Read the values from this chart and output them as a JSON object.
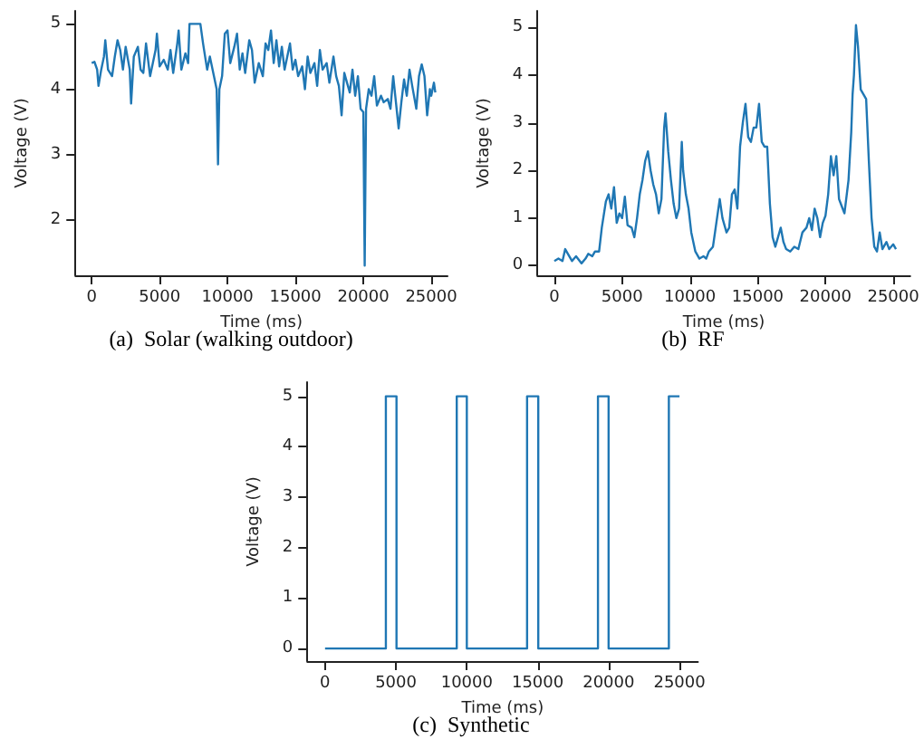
{
  "chart_data": [
    {
      "type": "line",
      "title": "(a)  Solar (walking outdoor)",
      "xlabel": "Time (ms)",
      "ylabel": "Voltage (V)",
      "color": "#1f77b4",
      "x": [
        0,
        200,
        400,
        500,
        700,
        900,
        1000,
        1200,
        1500,
        1700,
        1900,
        2100,
        2300,
        2500,
        2800,
        2900,
        3100,
        3400,
        3600,
        3800,
        4000,
        4300,
        4500,
        4700,
        4800,
        5000,
        5300,
        5600,
        5800,
        6000,
        6300,
        6400,
        6600,
        6900,
        7100,
        7200,
        8000,
        8200,
        8500,
        8700,
        9000,
        9200,
        9300,
        9400,
        9600,
        9800,
        10000,
        10200,
        10500,
        10700,
        10900,
        11100,
        11300,
        11600,
        11800,
        12000,
        12300,
        12600,
        12800,
        13000,
        13200,
        13400,
        13600,
        13800,
        14000,
        14200,
        14400,
        14600,
        14800,
        15000,
        15200,
        15500,
        15700,
        15900,
        16100,
        16400,
        16600,
        16800,
        17000,
        17300,
        17500,
        17800,
        18000,
        18200,
        18400,
        18600,
        18800,
        19000,
        19200,
        19400,
        19600,
        19800,
        20000,
        20100,
        20200,
        20400,
        20600,
        20800,
        21000,
        21300,
        21500,
        21800,
        22000,
        22200,
        22400,
        22600,
        22800,
        23000,
        23200,
        23400,
        23600,
        23900,
        24100,
        24300,
        24500,
        24700,
        24900,
        25000,
        25200,
        25300
      ],
      "values": [
        4.4,
        4.42,
        4.3,
        4.05,
        4.3,
        4.5,
        4.75,
        4.3,
        4.2,
        4.5,
        4.75,
        4.6,
        4.3,
        4.65,
        4.3,
        3.78,
        4.5,
        4.65,
        4.3,
        4.25,
        4.7,
        4.2,
        4.4,
        4.6,
        4.85,
        4.35,
        4.45,
        4.3,
        4.6,
        4.25,
        4.7,
        4.9,
        4.3,
        4.55,
        4.4,
        5.0,
        5.0,
        4.7,
        4.3,
        4.5,
        4.2,
        4.0,
        2.85,
        4.0,
        4.2,
        4.85,
        4.9,
        4.4,
        4.65,
        4.85,
        4.3,
        4.55,
        4.25,
        4.75,
        4.6,
        4.1,
        4.4,
        4.2,
        4.7,
        4.6,
        4.9,
        4.4,
        4.75,
        4.35,
        4.65,
        4.3,
        4.5,
        4.7,
        4.3,
        4.45,
        4.2,
        4.35,
        4.0,
        4.5,
        4.25,
        4.4,
        4.05,
        4.6,
        4.3,
        4.4,
        4.1,
        4.5,
        4.2,
        4.05,
        3.6,
        4.25,
        4.1,
        3.95,
        4.3,
        3.9,
        4.2,
        3.7,
        3.65,
        1.3,
        3.7,
        4.0,
        3.9,
        4.2,
        3.75,
        3.9,
        3.8,
        3.85,
        3.7,
        4.2,
        3.8,
        3.4,
        3.8,
        4.15,
        3.9,
        4.3,
        4.05,
        3.7,
        4.2,
        4.38,
        4.2,
        3.6,
        4.0,
        3.9,
        4.1,
        3.95
      ],
      "xlim": [
        -1200,
        26200
      ],
      "ylim": [
        1.15,
        5.2
      ],
      "xticks": [
        0,
        5000,
        10000,
        15000,
        20000,
        25000
      ],
      "yticks": [
        2,
        3,
        4,
        5
      ]
    },
    {
      "type": "line",
      "title": "(b)  RF",
      "xlabel": "Time (ms)",
      "ylabel": "Voltage (V)",
      "color": "#1f77b4",
      "x": [
        0,
        300,
        600,
        800,
        1000,
        1300,
        1600,
        2000,
        2300,
        2500,
        2800,
        3000,
        3300,
        3500,
        3800,
        4000,
        4200,
        4400,
        4600,
        4800,
        5000,
        5200,
        5400,
        5700,
        5900,
        6100,
        6300,
        6500,
        6700,
        6900,
        7100,
        7300,
        7500,
        7700,
        7900,
        8100,
        8200,
        8400,
        8600,
        8800,
        9000,
        9200,
        9400,
        9500,
        9700,
        9900,
        10100,
        10400,
        10700,
        11000,
        11200,
        11400,
        11700,
        11900,
        12200,
        12400,
        12700,
        12900,
        13100,
        13300,
        13500,
        13700,
        13900,
        14100,
        14300,
        14500,
        14700,
        14900,
        15100,
        15300,
        15500,
        15700,
        15900,
        16100,
        16300,
        16500,
        16700,
        16900,
        17100,
        17400,
        17700,
        18000,
        18300,
        18600,
        18800,
        19000,
        19200,
        19400,
        19600,
        19800,
        20000,
        20200,
        20400,
        20600,
        20800,
        21000,
        21200,
        21400,
        21700,
        21900,
        22000,
        22100,
        22250,
        22400,
        22600,
        22800,
        23000,
        23200,
        23400,
        23600,
        23800,
        24000,
        24200,
        24500,
        24700,
        25000,
        25200
      ],
      "values": [
        0.1,
        0.15,
        0.1,
        0.35,
        0.25,
        0.1,
        0.2,
        0.05,
        0.15,
        0.25,
        0.2,
        0.3,
        0.3,
        0.8,
        1.35,
        1.5,
        1.2,
        1.65,
        0.9,
        1.1,
        1.0,
        1.45,
        0.85,
        0.8,
        0.6,
        1.0,
        1.5,
        1.8,
        2.2,
        2.4,
        2.0,
        1.7,
        1.5,
        1.1,
        1.4,
        2.9,
        3.2,
        2.4,
        1.8,
        1.3,
        1.0,
        1.2,
        2.6,
        2.0,
        1.5,
        1.2,
        0.7,
        0.3,
        0.15,
        0.2,
        0.15,
        0.3,
        0.4,
        0.8,
        1.4,
        1.0,
        0.7,
        0.8,
        1.5,
        1.6,
        1.2,
        2.5,
        3.0,
        3.4,
        2.7,
        2.6,
        2.9,
        2.9,
        3.4,
        2.6,
        2.5,
        2.5,
        1.3,
        0.6,
        0.4,
        0.6,
        0.8,
        0.5,
        0.35,
        0.3,
        0.4,
        0.35,
        0.7,
        0.8,
        1.0,
        0.75,
        1.2,
        1.0,
        0.6,
        0.9,
        1.05,
        1.5,
        2.3,
        1.9,
        2.3,
        1.4,
        1.25,
        1.1,
        1.8,
        2.8,
        3.6,
        4.0,
        5.05,
        4.6,
        3.7,
        3.6,
        3.5,
        2.2,
        1.0,
        0.4,
        0.3,
        0.7,
        0.35,
        0.5,
        0.35,
        0.45,
        0.35
      ],
      "xlim": [
        -1250,
        26250
      ],
      "ylim": [
        -0.2,
        5.35
      ],
      "xticks": [
        0,
        5000,
        10000,
        15000,
        20000,
        25000
      ],
      "yticks": [
        0,
        1,
        2,
        3,
        4,
        5
      ]
    },
    {
      "type": "line",
      "title": "(c)  Synthetic",
      "xlabel": "Time (ms)",
      "ylabel": "Voltage (V)",
      "color": "#1f77b4",
      "x": [
        0,
        4290,
        4290,
        5040,
        5040,
        9290,
        9290,
        10000,
        10000,
        14250,
        14250,
        15040,
        15040,
        19250,
        19250,
        20000,
        20000,
        24250,
        24250,
        25000
      ],
      "values": [
        0,
        0,
        5,
        5,
        0,
        0,
        5,
        5,
        0,
        0,
        5,
        5,
        0,
        0,
        5,
        5,
        0,
        0,
        5,
        5
      ],
      "xlim": [
        -1250,
        26300
      ],
      "ylim": [
        -0.25,
        5.28
      ],
      "xticks": [
        0,
        5000,
        10000,
        15000,
        20000,
        25000
      ],
      "yticks": [
        0,
        1,
        2,
        3,
        4,
        5
      ]
    }
  ]
}
